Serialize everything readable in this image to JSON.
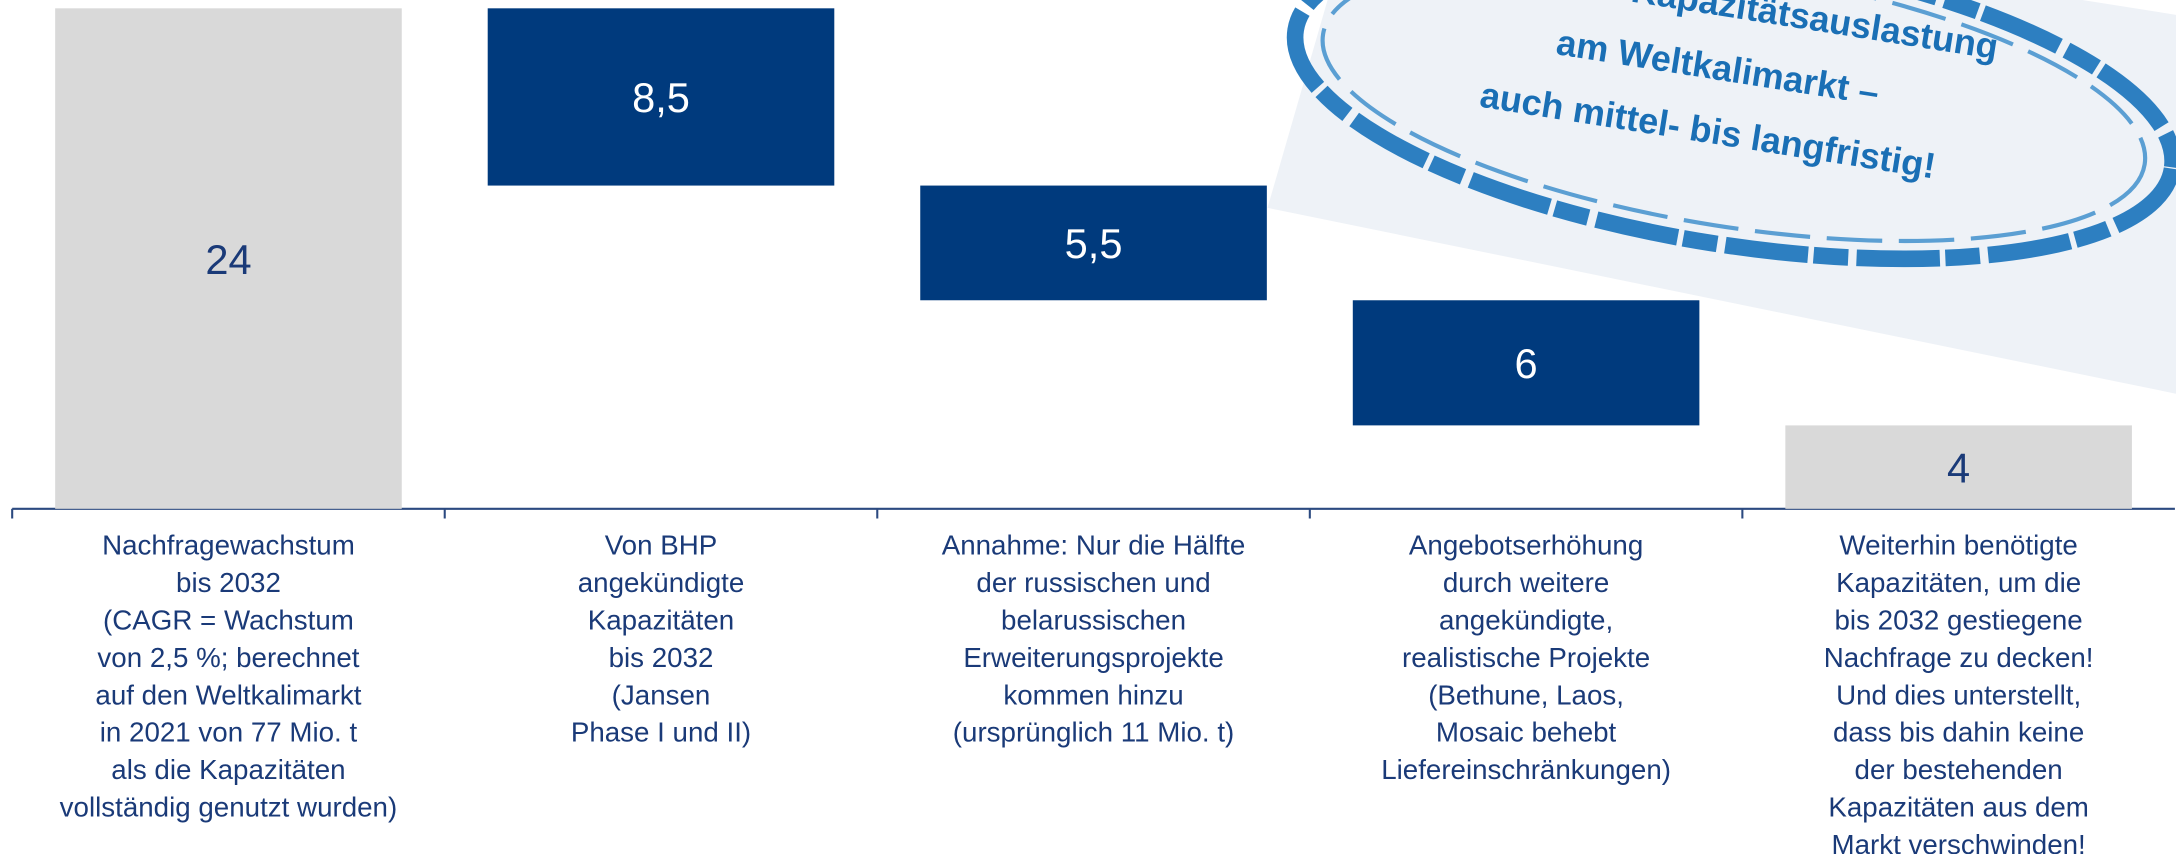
{
  "chart_data": {
    "type": "waterfall",
    "categories": [
      "Nachfragewachstum\nbis 2032\n(CAGR = Wachstum\nvon 2,5 %; berechnet\nauf den Weltkalimarkt\nin 2021 von 77 Mio. t\nals die Kapazitäten\nvollständig genutzt wurden)",
      "Von BHP\nangekündigte\nKapazitäten\nbis 2032\n(Jansen\nPhase I und II)",
      "Annahme: Nur die Hälfte\nder russischen und\nbelarussischen\nErweiterungsprojekte\nkommen hinzu\n(ursprünglich 11 Mio. t)",
      "Angebotserhöhung\ndurch weitere\nangekündigte,\nrealistische Projekte\n(Bethune, Laos,\nMosaic behebt\nLiefereinschränkungen)",
      "Weiterhin benötigte\nKapazitäten, um die\nbis 2032 gestiegene\nNachfrage zu decken!\nUnd dies unterstellt,\ndass bis dahin keine\nder bestehenden\nKapazitäten aus dem\nMarkt verschwinden!"
    ],
    "values": [
      24,
      8.5,
      5.5,
      6,
      4
    ],
    "value_labels": [
      "24",
      "8,5",
      "5,5",
      "6",
      "4"
    ],
    "measure": [
      "absolute",
      "relative",
      "relative",
      "relative",
      "total"
    ],
    "colors": [
      "#d9d9d9",
      "#003a7d",
      "#003a7d",
      "#003a7d",
      "#d9d9d9"
    ],
    "label_colors": [
      "#1a3a78",
      "#ffffff",
      "#ffffff",
      "#ffffff",
      "#1a3a78"
    ],
    "annotation": [
      "Attraktive Kapazitätsauslastung",
      "am Weltkalimarkt –",
      "auch mittel- bis langfristig!"
    ]
  }
}
